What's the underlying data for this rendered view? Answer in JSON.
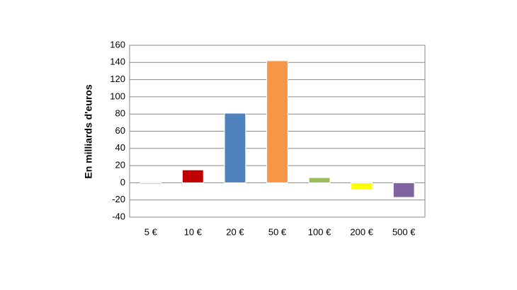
{
  "chart_data": {
    "type": "bar",
    "y_axis_label": "En milliards d'euros",
    "categories": [
      "5 €",
      "10 €",
      "20 €",
      "50 €",
      "100 €",
      "200 €",
      "500 €"
    ],
    "values": [
      -2,
      15,
      81,
      142,
      6,
      -8,
      -17
    ],
    "colors": [
      "#d9d9d9",
      "#c00000",
      "#4f81bd",
      "#f79646",
      "#9bbb59",
      "#ffff00",
      "#8064a2"
    ],
    "ylim": [
      -40,
      160
    ],
    "yticks": [
      -40,
      -20,
      0,
      20,
      40,
      60,
      80,
      100,
      120,
      140,
      160
    ],
    "grid": true
  }
}
